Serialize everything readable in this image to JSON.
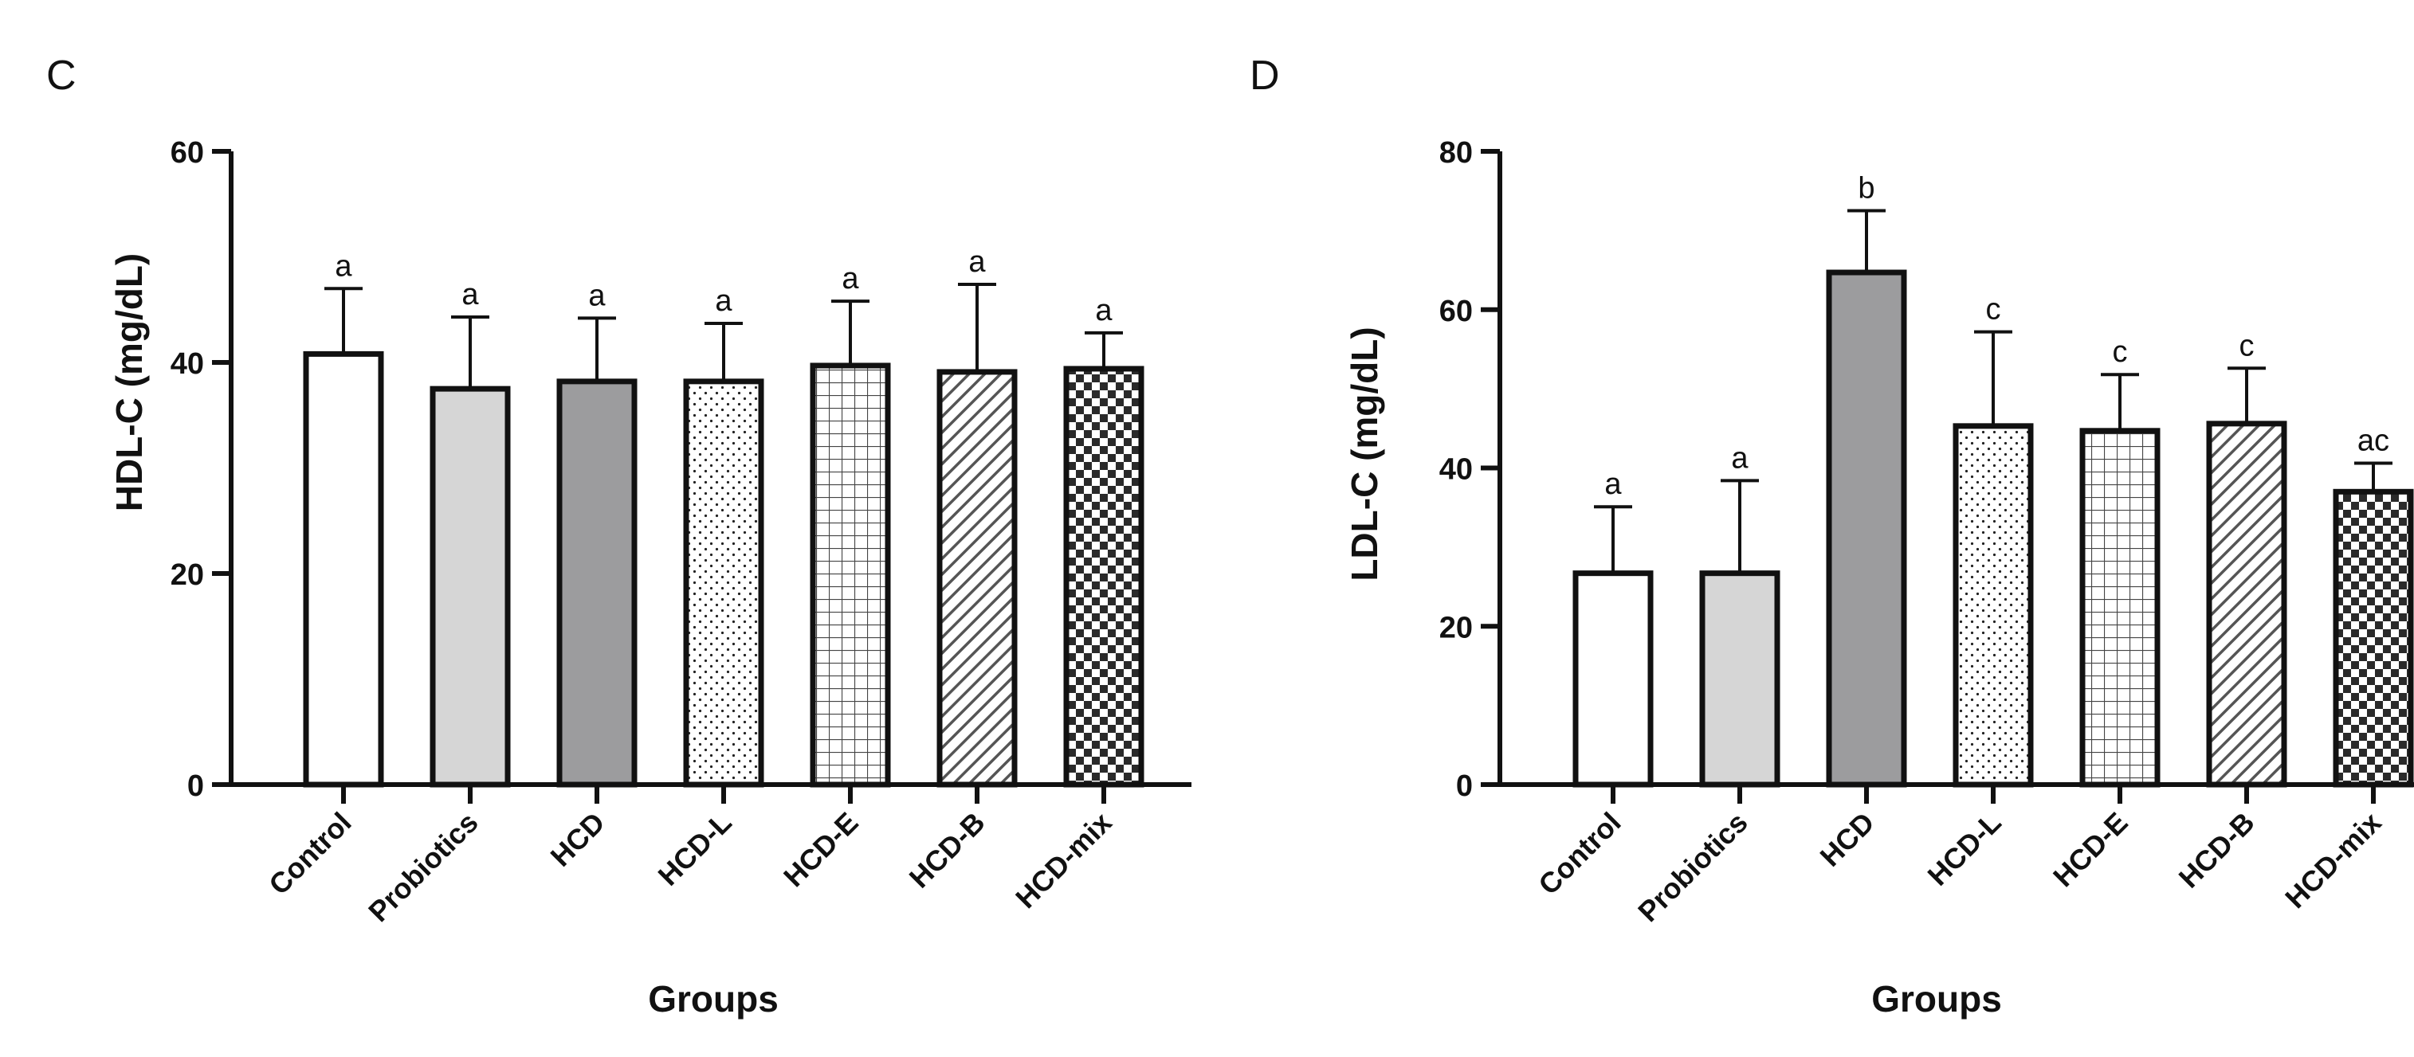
{
  "chart_data": [
    {
      "panel_label": "C",
      "type": "bar",
      "ylabel": "HDL-C (mg/dL)",
      "xlabel": "Groups",
      "ylim": [
        0,
        60
      ],
      "yticks": [
        0,
        20,
        40,
        60
      ],
      "categories": [
        "Control",
        "Probiotics",
        "HCD",
        "HCD-L",
        "HCD-E",
        "HCD-B",
        "HCD-mix"
      ],
      "values": [
        40.8,
        37.5,
        38.2,
        38.2,
        39.7,
        39.1,
        39.4
      ],
      "error_upper": [
        6.2,
        6.8,
        6.0,
        5.5,
        6.1,
        8.3,
        3.4
      ],
      "significance": [
        "a",
        "a",
        "a",
        "a",
        "a",
        "a",
        "a"
      ]
    },
    {
      "panel_label": "D",
      "type": "bar",
      "ylabel": "LDL-C (mg/dL)",
      "xlabel": "Groups",
      "ylim": [
        0,
        80
      ],
      "yticks": [
        0,
        20,
        40,
        60,
        80
      ],
      "categories": [
        "Control",
        "Probiotics",
        "HCD",
        "HCD-L",
        "HCD-E",
        "HCD-B",
        "HCD-mix"
      ],
      "values": [
        26.7,
        26.7,
        64.7,
        45.3,
        44.7,
        45.6,
        37.0
      ],
      "error_upper": [
        8.4,
        11.7,
        7.8,
        11.9,
        7.1,
        7.0,
        3.6
      ],
      "significance": [
        "a",
        "a",
        "b",
        "c",
        "c",
        "c",
        "ac"
      ]
    }
  ],
  "bar_styles": [
    {
      "fill": "#ffffff",
      "pattern": "none"
    },
    {
      "fill": "#d6d6d6",
      "pattern": "none"
    },
    {
      "fill": "#9c9c9e",
      "pattern": "none"
    },
    {
      "fill": "#ffffff",
      "pattern": "dots"
    },
    {
      "fill": "#ffffff",
      "pattern": "grid"
    },
    {
      "fill": "#ffffff",
      "pattern": "diagonal"
    },
    {
      "fill": "#ffffff",
      "pattern": "checker"
    }
  ],
  "colors": {
    "ink": "#111111",
    "background": "#ffffff"
  }
}
